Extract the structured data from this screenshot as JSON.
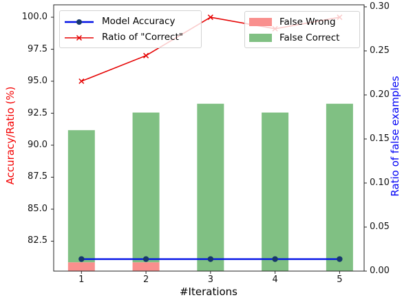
{
  "chart_data": {
    "type": "combo-bar-line",
    "title": "",
    "xlabel": "#Iterations",
    "x": [
      1,
      2,
      3,
      4,
      5
    ],
    "x_tick_labels": [
      "1",
      "2",
      "3",
      "4",
      "5"
    ],
    "xlim": [
      0.57,
      5.38
    ],
    "grid": false,
    "axes": {
      "left": {
        "label": "Accuracy/Ratio (%)",
        "label_color": "#f40000",
        "ylim": [
          80.16,
          100.97
        ],
        "ticks": [
          82.5,
          85.0,
          87.5,
          90.0,
          92.5,
          95.0,
          97.5,
          100.0
        ],
        "tick_labels": [
          "82.5",
          "85.0",
          "87.5",
          "90.0",
          "92.5",
          "95.0",
          "97.5",
          "100.0"
        ]
      },
      "right": {
        "label": "Ratio of false examples",
        "label_color": "#0000f5",
        "ylim": [
          0.0,
          0.3023
        ],
        "ticks": [
          0.0,
          0.05,
          0.1,
          0.15,
          0.2,
          0.25,
          0.3
        ],
        "tick_labels": [
          "0.00",
          "0.05",
          "0.10",
          "0.15",
          "0.20",
          "0.25",
          "0.30"
        ]
      }
    },
    "bar_series": {
      "stacked": true,
      "axis": "right",
      "series": [
        {
          "name": "False Wrong",
          "color": "#f98f8d",
          "values": [
            0.01,
            0.01,
            0.0,
            0.0,
            0.0
          ]
        },
        {
          "name": "False Correct",
          "color": "#80c083",
          "values": [
            0.15,
            0.17,
            0.19,
            0.18,
            0.19
          ]
        }
      ]
    },
    "line_series": [
      {
        "name": "Model Accuracy",
        "axis": "left",
        "color": "#0010e6",
        "marker": "circle",
        "marker_color": "#17386b",
        "values": [
          81.1,
          81.1,
          81.1,
          81.1,
          81.1
        ]
      },
      {
        "name": "Ratio of \"Correct\"",
        "axis": "left",
        "color": "#e50000",
        "marker": "x",
        "marker_color": "#e50000",
        "values": [
          95.0,
          97.0,
          100.0,
          99.1,
          100.0
        ]
      }
    ],
    "legend_left": {
      "items": [
        {
          "label": "Model Accuracy",
          "swatch": "line-dot",
          "color": "#0010e6",
          "marker_color": "#17386b"
        },
        {
          "label": "Ratio of \"Correct\"",
          "swatch": "line-x",
          "color": "#e50000",
          "marker_color": "#e50000"
        }
      ]
    },
    "legend_right": {
      "items": [
        {
          "label": "False Wrong",
          "swatch": "patch",
          "color": "#f98f8d"
        },
        {
          "label": "False Correct",
          "swatch": "patch",
          "color": "#80c083"
        }
      ]
    }
  }
}
